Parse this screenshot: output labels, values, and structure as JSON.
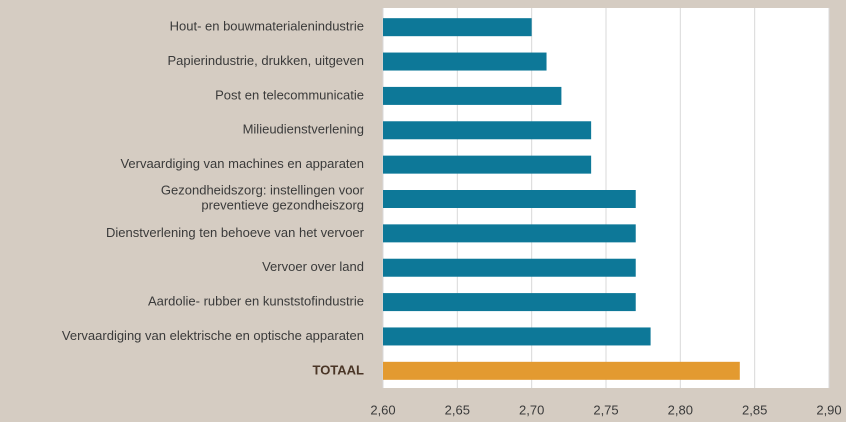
{
  "chart_data": {
    "type": "barh",
    "categories": [
      "Hout- en bouwmaterialenindustrie",
      "Papierindustrie, drukken, uitgeven",
      "Post en telecommunicatie",
      "Milieudienstverlening",
      "Vervaardiging van machines en apparaten",
      "Gezondheidszorg: instellingen voor\npreventieve gezondheiszorg",
      "Dienstverlening ten behoeve van het vervoer",
      "Vervoer over land",
      "Aardolie- rubber en kunststofindustrie",
      "Vervaardiging van elektrische en optische apparaten",
      "TOTAAL"
    ],
    "values": [
      2.7,
      2.71,
      2.72,
      2.74,
      2.74,
      2.77,
      2.77,
      2.77,
      2.77,
      2.78,
      2.84
    ],
    "colors": [
      "#0d7898",
      "#0d7898",
      "#0d7898",
      "#0d7898",
      "#0d7898",
      "#0d7898",
      "#0d7898",
      "#0d7898",
      "#0d7898",
      "#0d7898",
      "#e39a30"
    ],
    "xlim": [
      2.6,
      2.9
    ],
    "xticks": [
      {
        "value": 2.6,
        "label": "2,60"
      },
      {
        "value": 2.65,
        "label": "2,65"
      },
      {
        "value": 2.7,
        "label": "2,70"
      },
      {
        "value": 2.75,
        "label": "2,75"
      },
      {
        "value": 2.8,
        "label": "2,80"
      },
      {
        "value": 2.85,
        "label": "2,85"
      },
      {
        "value": 2.9,
        "label": "2,90"
      }
    ],
    "grid": true
  }
}
